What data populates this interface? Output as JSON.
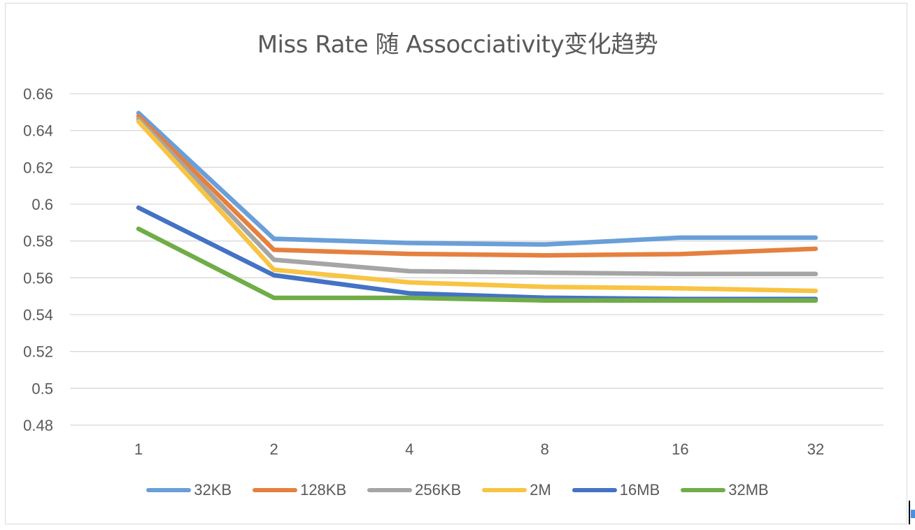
{
  "chart_data": {
    "type": "line",
    "title": "Miss Rate 随 Assocciativity变化趋势",
    "xlabel": "",
    "ylabel": "",
    "categories": [
      "1",
      "2",
      "4",
      "8",
      "16",
      "32"
    ],
    "ylim": [
      0.48,
      0.66
    ],
    "yticks": [
      "0.48",
      "0.5",
      "0.52",
      "0.54",
      "0.56",
      "0.58",
      "0.6",
      "0.62",
      "0.64",
      "0.66"
    ],
    "grid": "horizontal",
    "legend_position": "bottom",
    "series": [
      {
        "name": "32KB",
        "color": "#6a9fd8",
        "values": [
          0.6495,
          0.5812,
          0.5789,
          0.5781,
          0.5818,
          0.5818
        ]
      },
      {
        "name": "128KB",
        "color": "#e5803f",
        "values": [
          0.6478,
          0.5752,
          0.573,
          0.5722,
          0.5729,
          0.5758
        ]
      },
      {
        "name": "256KB",
        "color": "#a5a5a5",
        "values": [
          0.6462,
          0.5698,
          0.5636,
          0.5628,
          0.5621,
          0.5621
        ]
      },
      {
        "name": "2M",
        "color": "#f8c444",
        "values": [
          0.6449,
          0.5644,
          0.5575,
          0.5551,
          0.5543,
          0.5529
        ]
      },
      {
        "name": "16MB",
        "color": "#4472c4",
        "values": [
          0.5981,
          0.5614,
          0.5516,
          0.5492,
          0.5485,
          0.5485
        ]
      },
      {
        "name": "32MB",
        "color": "#70ad47",
        "values": [
          0.5866,
          0.5491,
          0.5491,
          0.5477,
          0.5477,
          0.5477
        ]
      }
    ]
  }
}
